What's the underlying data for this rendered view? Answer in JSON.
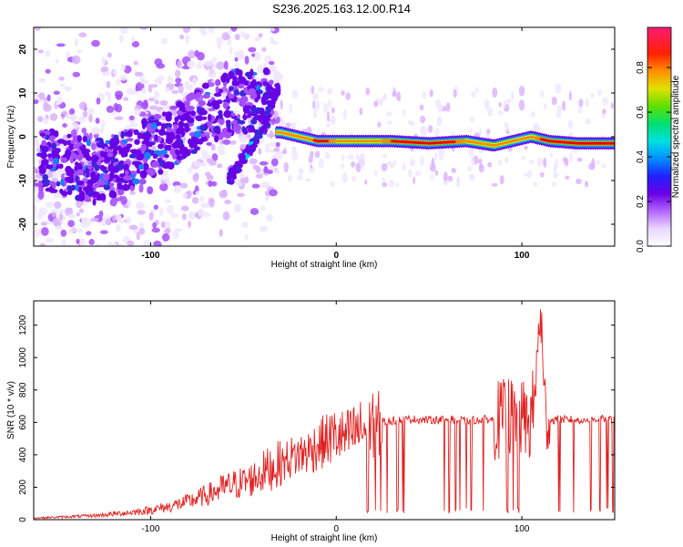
{
  "title": "S236.2025.163.12.00.R14",
  "colors": {
    "spectrum": [
      "#f0e6ff",
      "#d9b3ff",
      "#a64dff",
      "#6a00e6",
      "#3a28d8",
      "#1f7cff",
      "#00d0ff",
      "#00e68a",
      "#6be600",
      "#f0e600",
      "#ff8a00",
      "#e60000",
      "#ff1a75"
    ],
    "snr_line": "#e02020"
  },
  "chart_data": [
    {
      "type": "heatmap",
      "xlabel": "Height of straight line (km)",
      "ylabel": "Frequency (Hz)",
      "xlim": [
        -163,
        150
      ],
      "ylim": [
        -25,
        25
      ],
      "x_ticks": [
        -100,
        0,
        100
      ],
      "y_ticks": [
        -20,
        -10,
        0,
        10,
        20
      ],
      "colorbar": {
        "label": "Normalized spectral amplitude",
        "range": [
          0,
          0.98
        ],
        "ticks": [
          0.0,
          0.2,
          0.4,
          0.6,
          0.8
        ]
      },
      "grid": false,
      "features": {
        "main_echo": [
          [
            -30,
            1
          ],
          [
            -20,
            0
          ],
          [
            -10,
            -1
          ],
          [
            0,
            -1
          ],
          [
            10,
            -1
          ],
          [
            20,
            -1
          ],
          [
            30,
            -1
          ],
          [
            50,
            -1.5
          ],
          [
            70,
            -1
          ],
          [
            85,
            -2
          ],
          [
            95,
            -1
          ],
          [
            105,
            0
          ],
          [
            115,
            -1
          ],
          [
            130,
            -1.5
          ],
          [
            150,
            -1.5
          ]
        ],
        "diagonal_streak": [
          [
            -58,
            -10
          ],
          [
            -50,
            -5
          ],
          [
            -42,
            0
          ],
          [
            -37,
            5
          ],
          [
            -33,
            10
          ],
          [
            -30,
            12
          ]
        ],
        "diffuse_region": {
          "x_range": [
            -163,
            -30
          ],
          "f_range": [
            -25,
            25
          ],
          "center_line": [
            [
              -160,
              -5
            ],
            [
              -130,
              -8
            ],
            [
              -110,
              -5
            ],
            [
              -90,
              0
            ],
            [
              -70,
              5
            ],
            [
              -55,
              8
            ]
          ]
        }
      }
    },
    {
      "type": "line",
      "xlabel": "Height of straight line (km)",
      "ylabel": "SNR (10 * v/v)",
      "xlim": [
        -163,
        150
      ],
      "ylim": [
        0,
        1350
      ],
      "x_ticks": [
        -100,
        0,
        100
      ],
      "y_ticks": [
        0,
        200,
        400,
        600,
        800,
        1000,
        1200
      ],
      "grid": false,
      "series": [
        {
          "x": [
            -163,
            -150,
            -140,
            -130,
            -120,
            -110,
            -100,
            -90,
            -80,
            -70,
            -60,
            -50,
            -45,
            -40,
            -35,
            -30,
            -25,
            -20,
            -15,
            -10,
            -5,
            0,
            5,
            10,
            15,
            20,
            25,
            30,
            35,
            40,
            50,
            60,
            70,
            80,
            85,
            90,
            95,
            100,
            105,
            108,
            110,
            112,
            115,
            120,
            130,
            140,
            150
          ],
          "y": [
            10,
            15,
            20,
            25,
            35,
            45,
            60,
            80,
            110,
            150,
            200,
            230,
            250,
            290,
            320,
            340,
            380,
            400,
            420,
            460,
            490,
            520,
            500,
            540,
            560,
            580,
            600,
            610,
            615,
            620,
            615,
            620,
            610,
            620,
            615,
            620,
            630,
            620,
            600,
            900,
            1350,
            700,
            610,
            620,
            615,
            620,
            620
          ]
        }
      ],
      "dropouts_x": [
        17,
        21,
        24,
        27,
        30,
        33,
        36,
        58,
        61,
        64,
        67,
        70,
        73,
        76,
        79,
        92,
        95,
        98,
        120,
        124,
        128,
        133,
        137,
        142,
        146,
        149
      ]
    }
  ]
}
